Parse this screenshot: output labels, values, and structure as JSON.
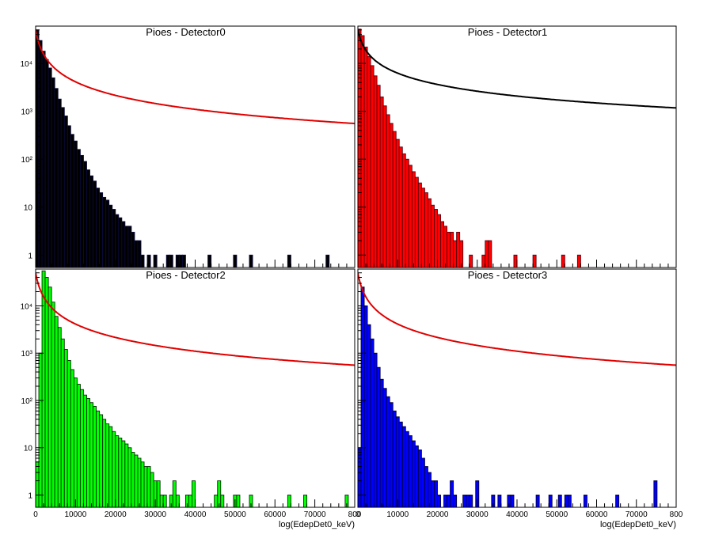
{
  "chart_data": [
    {
      "type": "histogram",
      "title": "Pioes - Detector0",
      "xlabel": "",
      "xlim": [
        0,
        80000
      ],
      "ylim": [
        0.55,
        60000
      ],
      "y_scale": "log",
      "y_ticks": [
        "1",
        "10",
        "10²",
        "10³",
        "10⁴"
      ],
      "x_ticks": [],
      "fill_color": "#000000",
      "edge_color": "#0a0a3a",
      "curve_color": "#e00000",
      "bin_width": 800,
      "values": [
        50000,
        30000,
        18000,
        12000,
        8000,
        5000,
        3000,
        1800,
        1200,
        800,
        500,
        330,
        240,
        160,
        120,
        90,
        60,
        45,
        35,
        25,
        20,
        16,
        14,
        11,
        9,
        7,
        6,
        5,
        4,
        4,
        3,
        2,
        2,
        1,
        0,
        1,
        0,
        1,
        0,
        0,
        0,
        1,
        1,
        0,
        1,
        1,
        1,
        0,
        0,
        0,
        0,
        0,
        0,
        0,
        1,
        0,
        0,
        0,
        0,
        0,
        0,
        0,
        1,
        0,
        0,
        0,
        0,
        1,
        0,
        0,
        0,
        0,
        0,
        0,
        0,
        0,
        0,
        0,
        0,
        1,
        0,
        0,
        0,
        0,
        0,
        0,
        0,
        0,
        0,
        0,
        0,
        1,
        0,
        0,
        0,
        0,
        0,
        0,
        0,
        0
      ],
      "curve": {
        "amplitude": 50000,
        "half_scale": 900,
        "power": 2.4
      }
    },
    {
      "type": "histogram",
      "title": "Pioes - Detector1",
      "xlabel": "",
      "xlim": [
        0,
        80000
      ],
      "ylim": [
        0.55,
        60000
      ],
      "y_scale": "log",
      "y_ticks": [],
      "x_ticks": [],
      "fill_color": "#ff0000",
      "edge_color": "#5a0010",
      "curve_color": "#000000",
      "bin_width": 800,
      "values": [
        52000,
        38000,
        22000,
        14000,
        9000,
        5500,
        3500,
        2000,
        1300,
        850,
        560,
        380,
        260,
        180,
        130,
        100,
        75,
        55,
        42,
        32,
        25,
        20,
        15,
        11,
        9,
        7,
        5,
        4,
        3,
        3,
        2,
        3,
        2,
        0,
        0,
        1,
        0,
        0,
        0,
        1,
        2,
        2,
        0,
        0,
        0,
        0,
        0,
        0,
        0,
        1,
        0,
        0,
        0,
        0,
        0,
        1,
        0,
        0,
        0,
        0,
        0,
        0,
        0,
        0,
        1,
        0,
        0,
        0,
        0,
        1,
        0,
        0,
        0,
        0,
        0,
        0,
        0,
        0,
        0,
        0,
        0,
        0,
        0,
        0,
        0,
        0,
        0,
        0,
        0,
        0,
        0,
        0,
        0,
        0,
        0,
        0,
        0,
        0,
        0,
        0
      ],
      "curve": {
        "amplitude": 50000,
        "half_scale": 900,
        "power": 2.0
      }
    },
    {
      "type": "histogram",
      "title": "Pioes - Detector2",
      "xlabel": "log(EdepDet0_keV)",
      "xlim": [
        0,
        80000
      ],
      "ylim": [
        0.55,
        60000
      ],
      "y_scale": "log",
      "y_ticks": [
        "1",
        "10",
        "10²",
        "10³",
        "10⁴"
      ],
      "x_ticks": [
        "0",
        "10000",
        "20000",
        "30000",
        "40000",
        "50000",
        "60000",
        "70000",
        "800"
      ],
      "fill_color": "#00ff00",
      "edge_color": "#003000",
      "curve_color": "#e00000",
      "bin_width": 800,
      "values": [
        5,
        1000,
        55000,
        40000,
        25000,
        12000,
        6000,
        3500,
        2000,
        1200,
        700,
        450,
        300,
        220,
        170,
        130,
        110,
        90,
        75,
        60,
        50,
        40,
        32,
        28,
        22,
        18,
        16,
        14,
        12,
        10,
        8,
        7,
        6,
        5,
        4,
        4,
        3,
        2,
        2,
        1,
        1,
        0,
        1,
        2,
        1,
        0,
        0,
        1,
        1,
        2,
        0,
        0,
        0,
        0,
        0,
        0,
        1,
        2,
        1,
        0,
        0,
        0,
        1,
        1,
        0,
        0,
        0,
        1,
        0,
        0,
        0,
        0,
        0,
        0,
        0,
        0,
        0,
        0,
        0,
        1,
        0,
        0,
        0,
        0,
        1,
        0,
        0,
        0,
        0,
        0,
        0,
        0,
        0,
        0,
        0,
        0,
        0,
        1,
        0,
        0
      ],
      "curve": {
        "amplitude": 50000,
        "half_scale": 900,
        "power": 2.4
      }
    },
    {
      "type": "histogram",
      "title": "Pioes - Detector3",
      "xlabel": "log(EdepDet0_keV)",
      "xlim": [
        0,
        80000
      ],
      "ylim": [
        0.55,
        60000
      ],
      "y_scale": "log",
      "y_ticks": [],
      "x_ticks": [
        "0",
        "10000",
        "20000",
        "30000",
        "40000",
        "50000",
        "60000",
        "70000",
        "800"
      ],
      "fill_color": "#0000ff",
      "edge_color": "#00003a",
      "curve_color": "#e00000",
      "bin_width": 800,
      "values": [
        10,
        25000,
        10000,
        4000,
        2000,
        1000,
        500,
        280,
        180,
        120,
        90,
        60,
        45,
        35,
        28,
        22,
        18,
        14,
        11,
        9,
        6,
        4,
        3,
        2,
        2,
        1,
        0,
        1,
        1,
        2,
        1,
        0,
        0,
        1,
        1,
        1,
        0,
        2,
        0,
        0,
        0,
        0,
        1,
        0,
        1,
        0,
        0,
        1,
        1,
        0,
        0,
        0,
        0,
        0,
        0,
        0,
        1,
        0,
        0,
        0,
        1,
        0,
        0,
        1,
        0,
        1,
        1,
        0,
        0,
        0,
        0,
        1,
        0,
        0,
        0,
        0,
        0,
        0,
        0,
        0,
        0,
        1,
        0,
        0,
        0,
        0,
        0,
        0,
        0,
        0,
        0,
        0,
        0,
        2,
        0,
        0,
        0,
        0,
        0,
        0
      ],
      "curve": {
        "amplitude": 50000,
        "half_scale": 900,
        "power": 2.4
      }
    }
  ]
}
